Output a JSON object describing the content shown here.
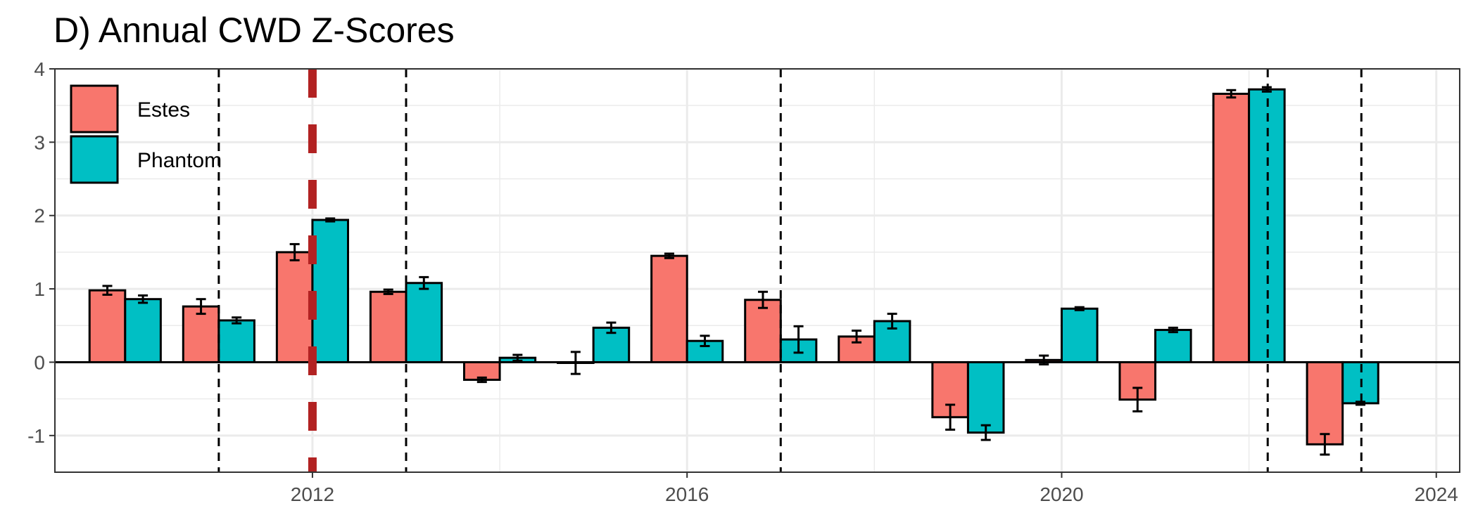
{
  "chart_data": {
    "type": "bar",
    "title": "D) Annual CWD Z-Scores",
    "xlabel": "",
    "ylabel": "",
    "xlim": [
      2009.25,
      2024.25
    ],
    "ylim": [
      -1.5,
      4
    ],
    "x_ticks": [
      2012,
      2016,
      2020,
      2024
    ],
    "y_ticks": [
      -1,
      0,
      1,
      2,
      3,
      4
    ],
    "grid": true,
    "legend_position": "top-left",
    "categories": [
      2010,
      2011,
      2012,
      2013,
      2014,
      2015,
      2016,
      2017,
      2018,
      2019,
      2020,
      2021,
      2022,
      2023
    ],
    "series": [
      {
        "name": "Estes",
        "color": "#F8766D",
        "values": [
          0.98,
          0.76,
          1.5,
          0.96,
          -0.24,
          -0.01,
          1.45,
          0.85,
          0.35,
          -0.75,
          0.03,
          -0.51,
          3.66,
          -1.12
        ],
        "errors": [
          0.06,
          0.1,
          0.11,
          0.03,
          0.03,
          0.15,
          0.03,
          0.11,
          0.08,
          0.17,
          0.06,
          0.16,
          0.05,
          0.14
        ]
      },
      {
        "name": "Phantom",
        "color": "#00BFC4",
        "values": [
          0.86,
          0.57,
          1.94,
          1.08,
          0.06,
          0.47,
          0.29,
          0.31,
          0.56,
          -0.96,
          0.73,
          0.44,
          3.72,
          -0.56
        ],
        "errors": [
          0.05,
          0.04,
          0.02,
          0.08,
          0.04,
          0.07,
          0.07,
          0.18,
          0.1,
          0.1,
          0.02,
          0.03,
          0.03,
          0.02
        ]
      }
    ],
    "vlines_dashed_black": [
      2011,
      2013,
      2017,
      2022.2,
      2023.2
    ],
    "vline_dashed_red": 2012,
    "colors": {
      "red_line": "#B22222",
      "black_line": "#000000",
      "grid": "#EBEBEB"
    }
  }
}
